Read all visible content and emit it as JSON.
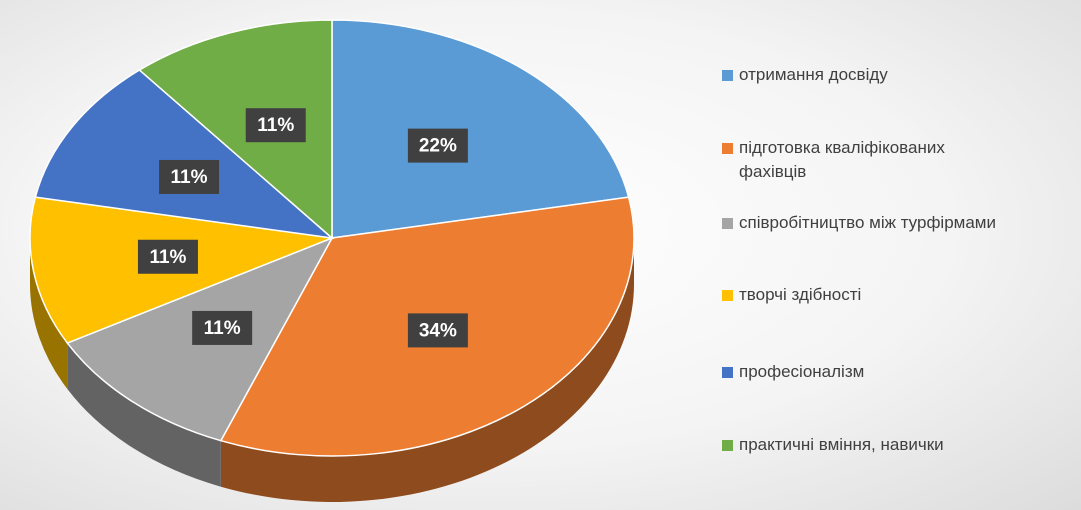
{
  "chart_data": {
    "type": "pie",
    "categories": [
      "отримання досвіду",
      "підготовка кваліфікованих фахівців",
      "співробітництво між турфірмами",
      "творчі здібності",
      "професіоналізм",
      "практичні вміння, навички"
    ],
    "values": [
      22,
      34,
      11,
      11,
      11,
      11
    ],
    "value_labels": [
      "22%",
      "34%",
      "11%",
      "11%",
      "11%",
      "11%"
    ],
    "colors": [
      "#5b9bd5",
      "#ed7d31",
      "#a5a5a5",
      "#ffc000",
      "#4472c4",
      "#70ad47"
    ],
    "legend": "right"
  }
}
